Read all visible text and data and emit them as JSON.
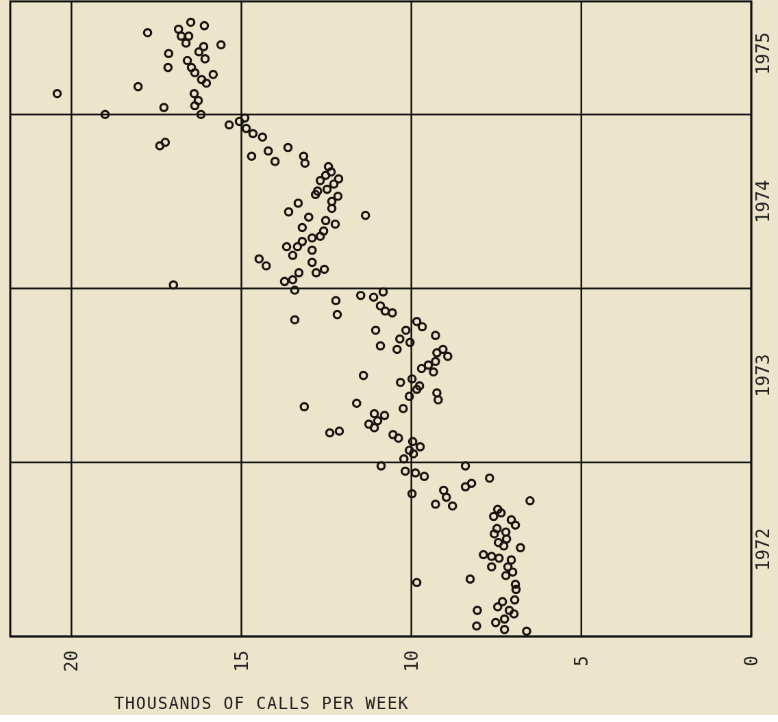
{
  "chart_data": {
    "type": "scatter",
    "xlabel": "THOUSANDS OF CALLS PER WEEK",
    "xlim": [
      21.8,
      0
    ],
    "xticks": [
      20,
      15,
      10,
      5,
      0
    ],
    "ylim": [
      1972,
      1975.65
    ],
    "yticks": [
      {
        "value": 1972,
        "label": null
      },
      {
        "value": 1972.5,
        "label": "1972"
      },
      {
        "value": 1973,
        "label": null
      },
      {
        "value": 1973.5,
        "label": "1973"
      },
      {
        "value": 1974,
        "label": null
      },
      {
        "value": 1974.5,
        "label": "1974"
      },
      {
        "value": 1975,
        "label": null
      },
      {
        "value": 1975.35,
        "label": "1975"
      }
    ],
    "grid": true,
    "marker": "circle",
    "series": [
      {
        "color": "#1a1410",
        "x": [
          20.42,
          17.76,
          16.85,
          16.49,
          16.09,
          16.77,
          16.55,
          16.63,
          15.6,
          16.11,
          16.25,
          17.14,
          16.07,
          16.59,
          17.16,
          16.47,
          16.37,
          15.83,
          16.17,
          16.03,
          18.04,
          16.39,
          16.27,
          16.37,
          17.28,
          19.01,
          16.19,
          15.36,
          15.06,
          14.9,
          14.86,
          14.66,
          14.38,
          13.63,
          14.7,
          14.21,
          14.01,
          13.17,
          13.13,
          17.4,
          17.24,
          12.44,
          12.36,
          12.52,
          12.14,
          12.68,
          12.28,
          12.48,
          12.76,
          12.82,
          12.16,
          12.34,
          13.33,
          12.34,
          13.61,
          11.35,
          13.02,
          12.52,
          12.24,
          13.21,
          12.58,
          12.92,
          12.68,
          13.67,
          13.21,
          13.35,
          12.92,
          13.49,
          14.48,
          14.27,
          12.92,
          12.56,
          12.8,
          13.31,
          13.49,
          13.73,
          17.0,
          13.43,
          12.22,
          11.49,
          11.11,
          10.83,
          10.91,
          10.77,
          10.56,
          13.43,
          12.18,
          11.05,
          10.16,
          9.84,
          9.68,
          9.29,
          10.34,
          10.04,
          10.91,
          10.42,
          9.07,
          9.25,
          8.93,
          9.29,
          9.5,
          9.7,
          9.35,
          11.41,
          9.98,
          10.32,
          9.76,
          9.84,
          10.06,
          9.25,
          9.21,
          13.15,
          11.61,
          10.24,
          11.09,
          10.79,
          10.99,
          11.25,
          11.09,
          12.4,
          12.12,
          10.54,
          10.38,
          9.96,
          9.74,
          10.06,
          9.94,
          10.22,
          10.89,
          10.18,
          9.88,
          9.62,
          8.41,
          7.7,
          8.41,
          8.23,
          9.98,
          9.05,
          8.97,
          9.29,
          8.79,
          6.51,
          7.46,
          7.36,
          7.58,
          7.06,
          6.94,
          7.48,
          7.56,
          7.22,
          7.2,
          7.44,
          7.28,
          6.79,
          7.88,
          7.64,
          7.42,
          7.06,
          7.64,
          7.16,
          7.02,
          7.22,
          8.27,
          9.84,
          6.94,
          6.92,
          6.96,
          7.32,
          7.46,
          7.12,
          6.98,
          8.06,
          7.26,
          7.52,
          8.08,
          7.26,
          6.61
        ],
        "values": [
          1975.12,
          1975.47,
          1975.49,
          1975.53,
          1975.51,
          1975.45,
          1975.45,
          1975.41,
          1975.4,
          1975.39,
          1975.36,
          1975.35,
          1975.32,
          1975.31,
          1975.27,
          1975.27,
          1975.24,
          1975.23,
          1975.2,
          1975.18,
          1975.16,
          1975.12,
          1975.08,
          1975.05,
          1975.04,
          1975.0,
          1975.0,
          1974.94,
          1974.96,
          1974.98,
          1974.92,
          1974.89,
          1974.87,
          1974.81,
          1974.76,
          1974.79,
          1974.73,
          1974.76,
          1974.72,
          1974.82,
          1974.84,
          1974.7,
          1974.67,
          1974.65,
          1974.63,
          1974.62,
          1974.6,
          1974.57,
          1974.56,
          1974.54,
          1974.53,
          1974.5,
          1974.49,
          1974.46,
          1974.44,
          1974.42,
          1974.41,
          1974.39,
          1974.37,
          1974.35,
          1974.33,
          1974.29,
          1974.3,
          1974.24,
          1974.27,
          1974.24,
          1974.22,
          1974.19,
          1974.17,
          1974.13,
          1974.15,
          1974.11,
          1974.09,
          1974.09,
          1974.05,
          1974.04,
          1974.02,
          1973.99,
          1973.93,
          1973.96,
          1973.95,
          1973.98,
          1973.9,
          1973.87,
          1973.86,
          1973.82,
          1973.85,
          1973.76,
          1973.76,
          1973.81,
          1973.78,
          1973.73,
          1973.71,
          1973.69,
          1973.67,
          1973.65,
          1973.65,
          1973.63,
          1973.61,
          1973.58,
          1973.56,
          1973.54,
          1973.52,
          1973.5,
          1973.48,
          1973.46,
          1973.44,
          1973.42,
          1973.38,
          1973.4,
          1973.36,
          1973.32,
          1973.34,
          1973.31,
          1973.28,
          1973.27,
          1973.24,
          1973.22,
          1973.2,
          1973.17,
          1973.18,
          1973.16,
          1973.14,
          1973.12,
          1973.09,
          1973.07,
          1973.05,
          1973.02,
          1972.98,
          1972.95,
          1972.94,
          1972.92,
          1972.98,
          1972.91,
          1972.86,
          1972.88,
          1972.82,
          1972.84,
          1972.8,
          1972.76,
          1972.75,
          1972.78,
          1972.73,
          1972.71,
          1972.69,
          1972.67,
          1972.64,
          1972.62,
          1972.59,
          1972.6,
          1972.56,
          1972.54,
          1972.52,
          1972.51,
          1972.47,
          1972.46,
          1972.45,
          1972.44,
          1972.4,
          1972.4,
          1972.37,
          1972.35,
          1972.33,
          1972.31,
          1972.3,
          1972.27,
          1972.21,
          1972.2,
          1972.17,
          1972.15,
          1972.13,
          1972.15,
          1972.1,
          1972.08,
          1972.06,
          1972.04,
          1972.03
        ]
      }
    ]
  }
}
